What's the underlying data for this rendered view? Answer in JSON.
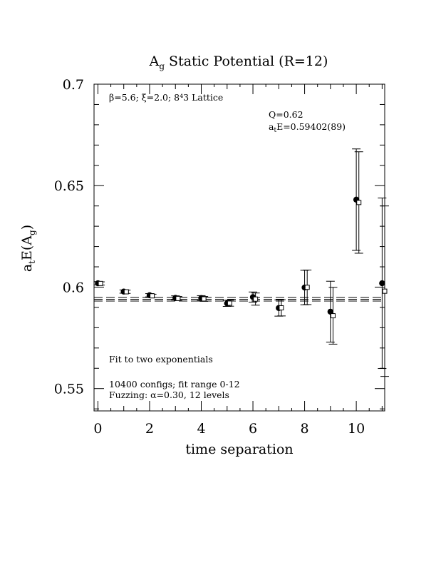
{
  "chart_data": {
    "type": "scatter",
    "title": {
      "main": "A",
      "sub": "g",
      "rest": " Static Potential (R=12)"
    },
    "ylabel": {
      "main": "a",
      "sub1": "t",
      "mid": "E(A",
      "sub2": "g",
      "end": ")"
    },
    "xlabel": "time separation",
    "xlim": [
      -0.15,
      11.1
    ],
    "ylim": [
      0.539,
      0.7
    ],
    "x_ticks": [
      0,
      2,
      4,
      6,
      8,
      10
    ],
    "x_tick_labels": [
      "0",
      "2",
      "4",
      "6",
      "8",
      "10"
    ],
    "y_ticks": [
      0.55,
      0.6,
      0.65,
      0.7
    ],
    "y_tick_labels": [
      "0.55",
      "0.6",
      "0.65",
      "0.7"
    ],
    "grid": false,
    "annotations": {
      "lattice": "β=5.6; ξ=2.0; 8⁴3 Lattice",
      "q_value": "Q=0.62",
      "energy": {
        "main": "a",
        "sub": "t",
        "rest": "E=0.59402(89)"
      },
      "fit": "Fit to two exponentials",
      "configs": "10400 configs; fit range 0-12",
      "fuzzing": "Fuzzing: α=0.30, 12 levels"
    },
    "fit_band": {
      "central": 0.59402,
      "error": 0.00089,
      "x_range": [
        -0.15,
        11.1
      ],
      "style": "dashed"
    },
    "series": [
      {
        "marker": "filled-circle",
        "points": [
          {
            "x": 0,
            "y": 0.6019,
            "err": 0.0008
          },
          {
            "x": 1,
            "y": 0.5978,
            "err": 0.0008
          },
          {
            "x": 2,
            "y": 0.596,
            "err": 0.0008
          },
          {
            "x": 3,
            "y": 0.5947,
            "err": 0.001
          },
          {
            "x": 4,
            "y": 0.5946,
            "err": 0.0012
          },
          {
            "x": 5,
            "y": 0.592,
            "err": 0.0015
          },
          {
            "x": 6,
            "y": 0.5951,
            "err": 0.0025
          },
          {
            "x": 7,
            "y": 0.5897,
            "err": 0.004
          },
          {
            "x": 8,
            "y": 0.5998,
            "err": 0.0085
          },
          {
            "x": 9,
            "y": 0.5879,
            "err": 0.015
          },
          {
            "x": 10,
            "y": 0.6431,
            "err": 0.025
          },
          {
            "x": 11,
            "y": 0.6019,
            "err": 0.042
          }
        ]
      },
      {
        "marker": "open-square",
        "points": [
          {
            "x": 0.1,
            "y": 0.6018,
            "err": 0.0008
          },
          {
            "x": 1.1,
            "y": 0.5977,
            "err": 0.0008
          },
          {
            "x": 2.1,
            "y": 0.5957,
            "err": 0.0008
          },
          {
            "x": 3.1,
            "y": 0.5944,
            "err": 0.001
          },
          {
            "x": 4.1,
            "y": 0.5942,
            "err": 0.0012
          },
          {
            "x": 5.1,
            "y": 0.5921,
            "err": 0.0015
          },
          {
            "x": 6.1,
            "y": 0.5941,
            "err": 0.003
          },
          {
            "x": 7.1,
            "y": 0.5898,
            "err": 0.004
          },
          {
            "x": 8.1,
            "y": 0.5999,
            "err": 0.0085
          },
          {
            "x": 9.1,
            "y": 0.5859,
            "err": 0.014
          },
          {
            "x": 10.1,
            "y": 0.6417,
            "err": 0.025
          },
          {
            "x": 11.1,
            "y": 0.598,
            "err": 0.042
          }
        ]
      }
    ]
  }
}
